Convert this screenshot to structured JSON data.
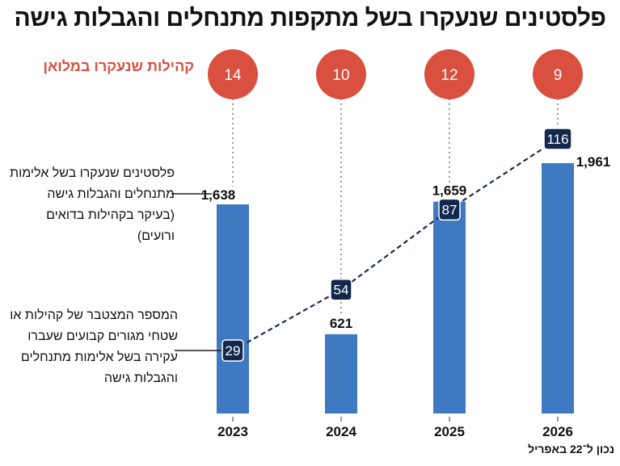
{
  "title": "פלסטינים שנעקרו בשל מתקפות מתנחלים והגבלות גישה",
  "circles_label": "קהילות שנעקרו במלואן",
  "notes": {
    "bars": "פלסטינים שנעקרו בשל אלימות מתנחלים והגבלות גישה (בעיקר בקהילות בדואים ורועים)",
    "line": "המספר המצטבר של קהילות או שטחי מגורים קבועים שעברו עקירה בשל אלימות מתנחלים והגבלות גישה"
  },
  "footnote": "נכון ל־22 באפריל",
  "colors": {
    "bar": "#3e79c2",
    "circle": "#d9503f",
    "line": "#1b2d52",
    "label_bg": "#13284d"
  },
  "chart_data": {
    "type": "bar",
    "categories": [
      "2023",
      "2024",
      "2025",
      "2026"
    ],
    "series": [
      {
        "name": "פלסטינים שנעקרו בשל אלימות מתנחלים והגבלות גישה",
        "type": "bar",
        "values": [
          1638,
          621,
          1659,
          1961
        ],
        "labels": [
          "1,638",
          "621",
          "1,659",
          "1,961"
        ]
      },
      {
        "name": "המספר המצטבר של קהילות שעברו עקירה",
        "type": "line",
        "values": [
          29,
          54,
          87,
          116
        ]
      },
      {
        "name": "קהילות שנעקרו במלואן",
        "type": "circle",
        "values": [
          14,
          10,
          12,
          9
        ]
      }
    ],
    "ylim": [
      0,
      2100
    ],
    "line_ylim": [
      0,
      120
    ]
  }
}
